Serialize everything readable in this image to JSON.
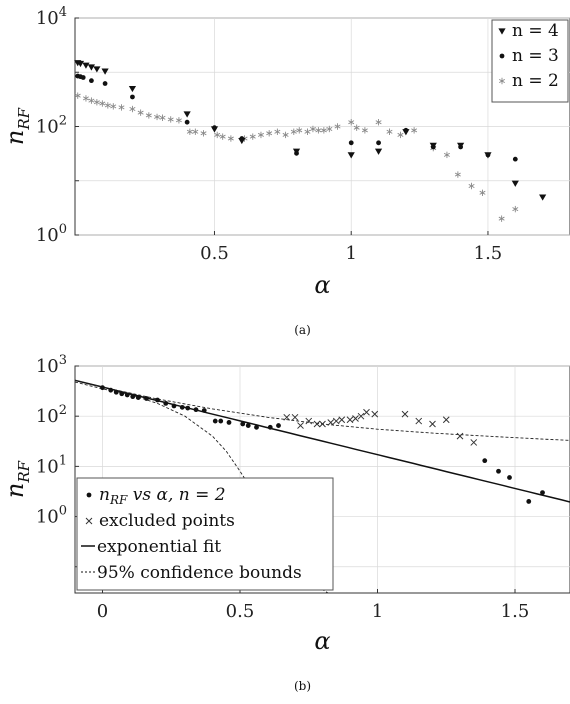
{
  "figure": {
    "caption_a": "(a)",
    "caption_b": "(b)"
  },
  "chart_data": [
    {
      "type": "scatter",
      "panel": "a",
      "xlabel": "α",
      "ylabel": "n_RF",
      "x_ticks": [
        "0.5",
        "1",
        "1.5"
      ],
      "x_tick_values": [
        0.5,
        1,
        1.5
      ],
      "y_ticks": [
        {
          "base": "10",
          "exp": "0",
          "value": 1
        },
        {
          "base": "10",
          "exp": "2",
          "value": 100
        },
        {
          "base": "10",
          "exp": "4",
          "value": 10000
        }
      ],
      "xlim": [
        -0.01,
        1.8
      ],
      "ylim": [
        1,
        10000
      ],
      "y_scale": "log",
      "grid": true,
      "legend_position": "top-right",
      "series": [
        {
          "name": "n = 4",
          "marker": "triangle-down",
          "points": [
            [
              0.0,
              1500
            ],
            [
              0.01,
              1450
            ],
            [
              0.03,
              1350
            ],
            [
              0.05,
              1250
            ],
            [
              0.07,
              1150
            ],
            [
              0.1,
              1050
            ],
            [
              0.2,
              500
            ],
            [
              0.4,
              170
            ],
            [
              0.5,
              90
            ],
            [
              0.6,
              55
            ],
            [
              0.8,
              35
            ],
            [
              1.0,
              30
            ],
            [
              1.1,
              35
            ],
            [
              1.2,
              80
            ],
            [
              1.3,
              45
            ],
            [
              1.4,
              45
            ],
            [
              1.5,
              30
            ],
            [
              1.6,
              9
            ],
            [
              1.7,
              5
            ]
          ]
        },
        {
          "name": "n = 3",
          "marker": "dot",
          "points": [
            [
              0.0,
              850
            ],
            [
              0.01,
              830
            ],
            [
              0.02,
              800
            ],
            [
              0.05,
              700
            ],
            [
              0.1,
              620
            ],
            [
              0.2,
              350
            ],
            [
              0.4,
              120
            ],
            [
              0.5,
              95
            ],
            [
              0.6,
              60
            ],
            [
              0.8,
              32
            ],
            [
              1.0,
              50
            ],
            [
              1.1,
              50
            ],
            [
              1.2,
              85
            ],
            [
              1.3,
              42
            ],
            [
              1.4,
              42
            ],
            [
              1.5,
              30
            ],
            [
              1.6,
              25
            ]
          ]
        },
        {
          "name": "n = 2",
          "marker": "asterisk",
          "points": [
            [
              0.0,
              370
            ],
            [
              0.03,
              330
            ],
            [
              0.05,
              300
            ],
            [
              0.07,
              280
            ],
            [
              0.09,
              265
            ],
            [
              0.11,
              245
            ],
            [
              0.13,
              235
            ],
            [
              0.16,
              225
            ],
            [
              0.2,
              210
            ],
            [
              0.23,
              180
            ],
            [
              0.26,
              160
            ],
            [
              0.29,
              150
            ],
            [
              0.31,
              145
            ],
            [
              0.34,
              135
            ],
            [
              0.37,
              130
            ],
            [
              0.41,
              80
            ],
            [
              0.43,
              80
            ],
            [
              0.46,
              75
            ],
            [
              0.51,
              70
            ],
            [
              0.53,
              65
            ],
            [
              0.56,
              60
            ],
            [
              0.61,
              60
            ],
            [
              0.64,
              65
            ],
            [
              0.67,
              70
            ],
            [
              0.7,
              75
            ],
            [
              0.73,
              80
            ],
            [
              0.76,
              70
            ],
            [
              0.79,
              80
            ],
            [
              0.81,
              85
            ],
            [
              0.84,
              80
            ],
            [
              0.86,
              90
            ],
            [
              0.88,
              85
            ],
            [
              0.9,
              85
            ],
            [
              0.92,
              90
            ],
            [
              0.95,
              100
            ],
            [
              1.0,
              120
            ],
            [
              1.02,
              95
            ],
            [
              1.05,
              85
            ],
            [
              1.1,
              120
            ],
            [
              1.14,
              80
            ],
            [
              1.18,
              70
            ],
            [
              1.23,
              85
            ],
            [
              1.3,
              40
            ],
            [
              1.35,
              30
            ],
            [
              1.39,
              13
            ],
            [
              1.44,
              8
            ],
            [
              1.48,
              6
            ],
            [
              1.55,
              2
            ],
            [
              1.6,
              3
            ]
          ]
        }
      ]
    },
    {
      "type": "scatter",
      "panel": "b",
      "xlabel": "α",
      "ylabel": "n_RF",
      "x_ticks": [
        "0",
        "0.5",
        "1",
        "1.5"
      ],
      "x_tick_values": [
        0,
        0.5,
        1,
        1.5
      ],
      "y_ticks": [
        {
          "base": "10",
          "exp": "0",
          "value": 1
        },
        {
          "base": "10",
          "exp": "1",
          "value": 10
        },
        {
          "base": "10",
          "exp": "2",
          "value": 100
        },
        {
          "base": "10",
          "exp": "3",
          "value": 1000
        }
      ],
      "xlim": [
        -0.1,
        1.7
      ],
      "ylim": [
        0.03,
        1000
      ],
      "y_scale": "log",
      "grid": true,
      "legend_position": "bottom-left",
      "legend": {
        "entry1_prefix": "n",
        "entry1_sub": "RF",
        "entry1_mid": " vs ",
        "entry1_alpha": "α",
        "entry1_tail": ", n = 2",
        "entry2": "excluded points",
        "entry3": "exponential fit",
        "entry4": "95% confidence bounds"
      },
      "series": [
        {
          "name": "n_RF vs α, n = 2",
          "marker": "dot",
          "points": [
            [
              0.0,
              370
            ],
            [
              0.03,
              330
            ],
            [
              0.05,
              300
            ],
            [
              0.07,
              280
            ],
            [
              0.09,
              265
            ],
            [
              0.11,
              245
            ],
            [
              0.13,
              235
            ],
            [
              0.16,
              225
            ],
            [
              0.2,
              210
            ],
            [
              0.23,
              180
            ],
            [
              0.26,
              160
            ],
            [
              0.29,
              150
            ],
            [
              0.31,
              145
            ],
            [
              0.34,
              135
            ],
            [
              0.37,
              130
            ],
            [
              0.41,
              80
            ],
            [
              0.43,
              80
            ],
            [
              0.46,
              75
            ],
            [
              0.51,
              70
            ],
            [
              0.53,
              65
            ],
            [
              0.56,
              60
            ],
            [
              0.61,
              60
            ],
            [
              0.64,
              65
            ],
            [
              1.39,
              13
            ],
            [
              1.44,
              8
            ],
            [
              1.48,
              6
            ],
            [
              1.55,
              2
            ],
            [
              1.6,
              3
            ]
          ]
        },
        {
          "name": "excluded points",
          "marker": "cross",
          "points": [
            [
              0.67,
              95
            ],
            [
              0.7,
              95
            ],
            [
              0.72,
              65
            ],
            [
              0.75,
              80
            ],
            [
              0.78,
              70
            ],
            [
              0.8,
              70
            ],
            [
              0.83,
              75
            ],
            [
              0.85,
              80
            ],
            [
              0.87,
              85
            ],
            [
              0.9,
              85
            ],
            [
              0.92,
              90
            ],
            [
              0.94,
              100
            ],
            [
              0.96,
              120
            ],
            [
              0.99,
              110
            ],
            [
              1.1,
              110
            ],
            [
              1.15,
              80
            ],
            [
              1.2,
              70
            ],
            [
              1.25,
              85
            ],
            [
              1.3,
              40
            ],
            [
              1.35,
              30
            ]
          ]
        }
      ],
      "fit": {
        "name": "exponential fit",
        "a": 380,
        "b": -3.1
      },
      "bounds": {
        "name": "95% confidence bounds",
        "upper": [
          [
            -0.1,
            520
          ],
          [
            0.0,
            380
          ],
          [
            0.2,
            220
          ],
          [
            0.4,
            140
          ],
          [
            0.6,
            95
          ],
          [
            0.8,
            70
          ],
          [
            1.0,
            55
          ],
          [
            1.2,
            46
          ],
          [
            1.4,
            40
          ],
          [
            1.6,
            35
          ],
          [
            1.7,
            33
          ]
        ],
        "lower": [
          [
            -0.1,
            480
          ],
          [
            0.0,
            350
          ],
          [
            0.1,
            270
          ],
          [
            0.2,
            180
          ],
          [
            0.3,
            100
          ],
          [
            0.4,
            40
          ],
          [
            0.45,
            20
          ],
          [
            0.5,
            8
          ],
          [
            0.55,
            3
          ],
          [
            0.6,
            1
          ],
          [
            0.65,
            0.3
          ],
          [
            0.7,
            0.1
          ],
          [
            0.75,
            0.05
          ],
          [
            0.8,
            0.035
          ],
          [
            0.82,
            0.03
          ]
        ]
      }
    }
  ]
}
